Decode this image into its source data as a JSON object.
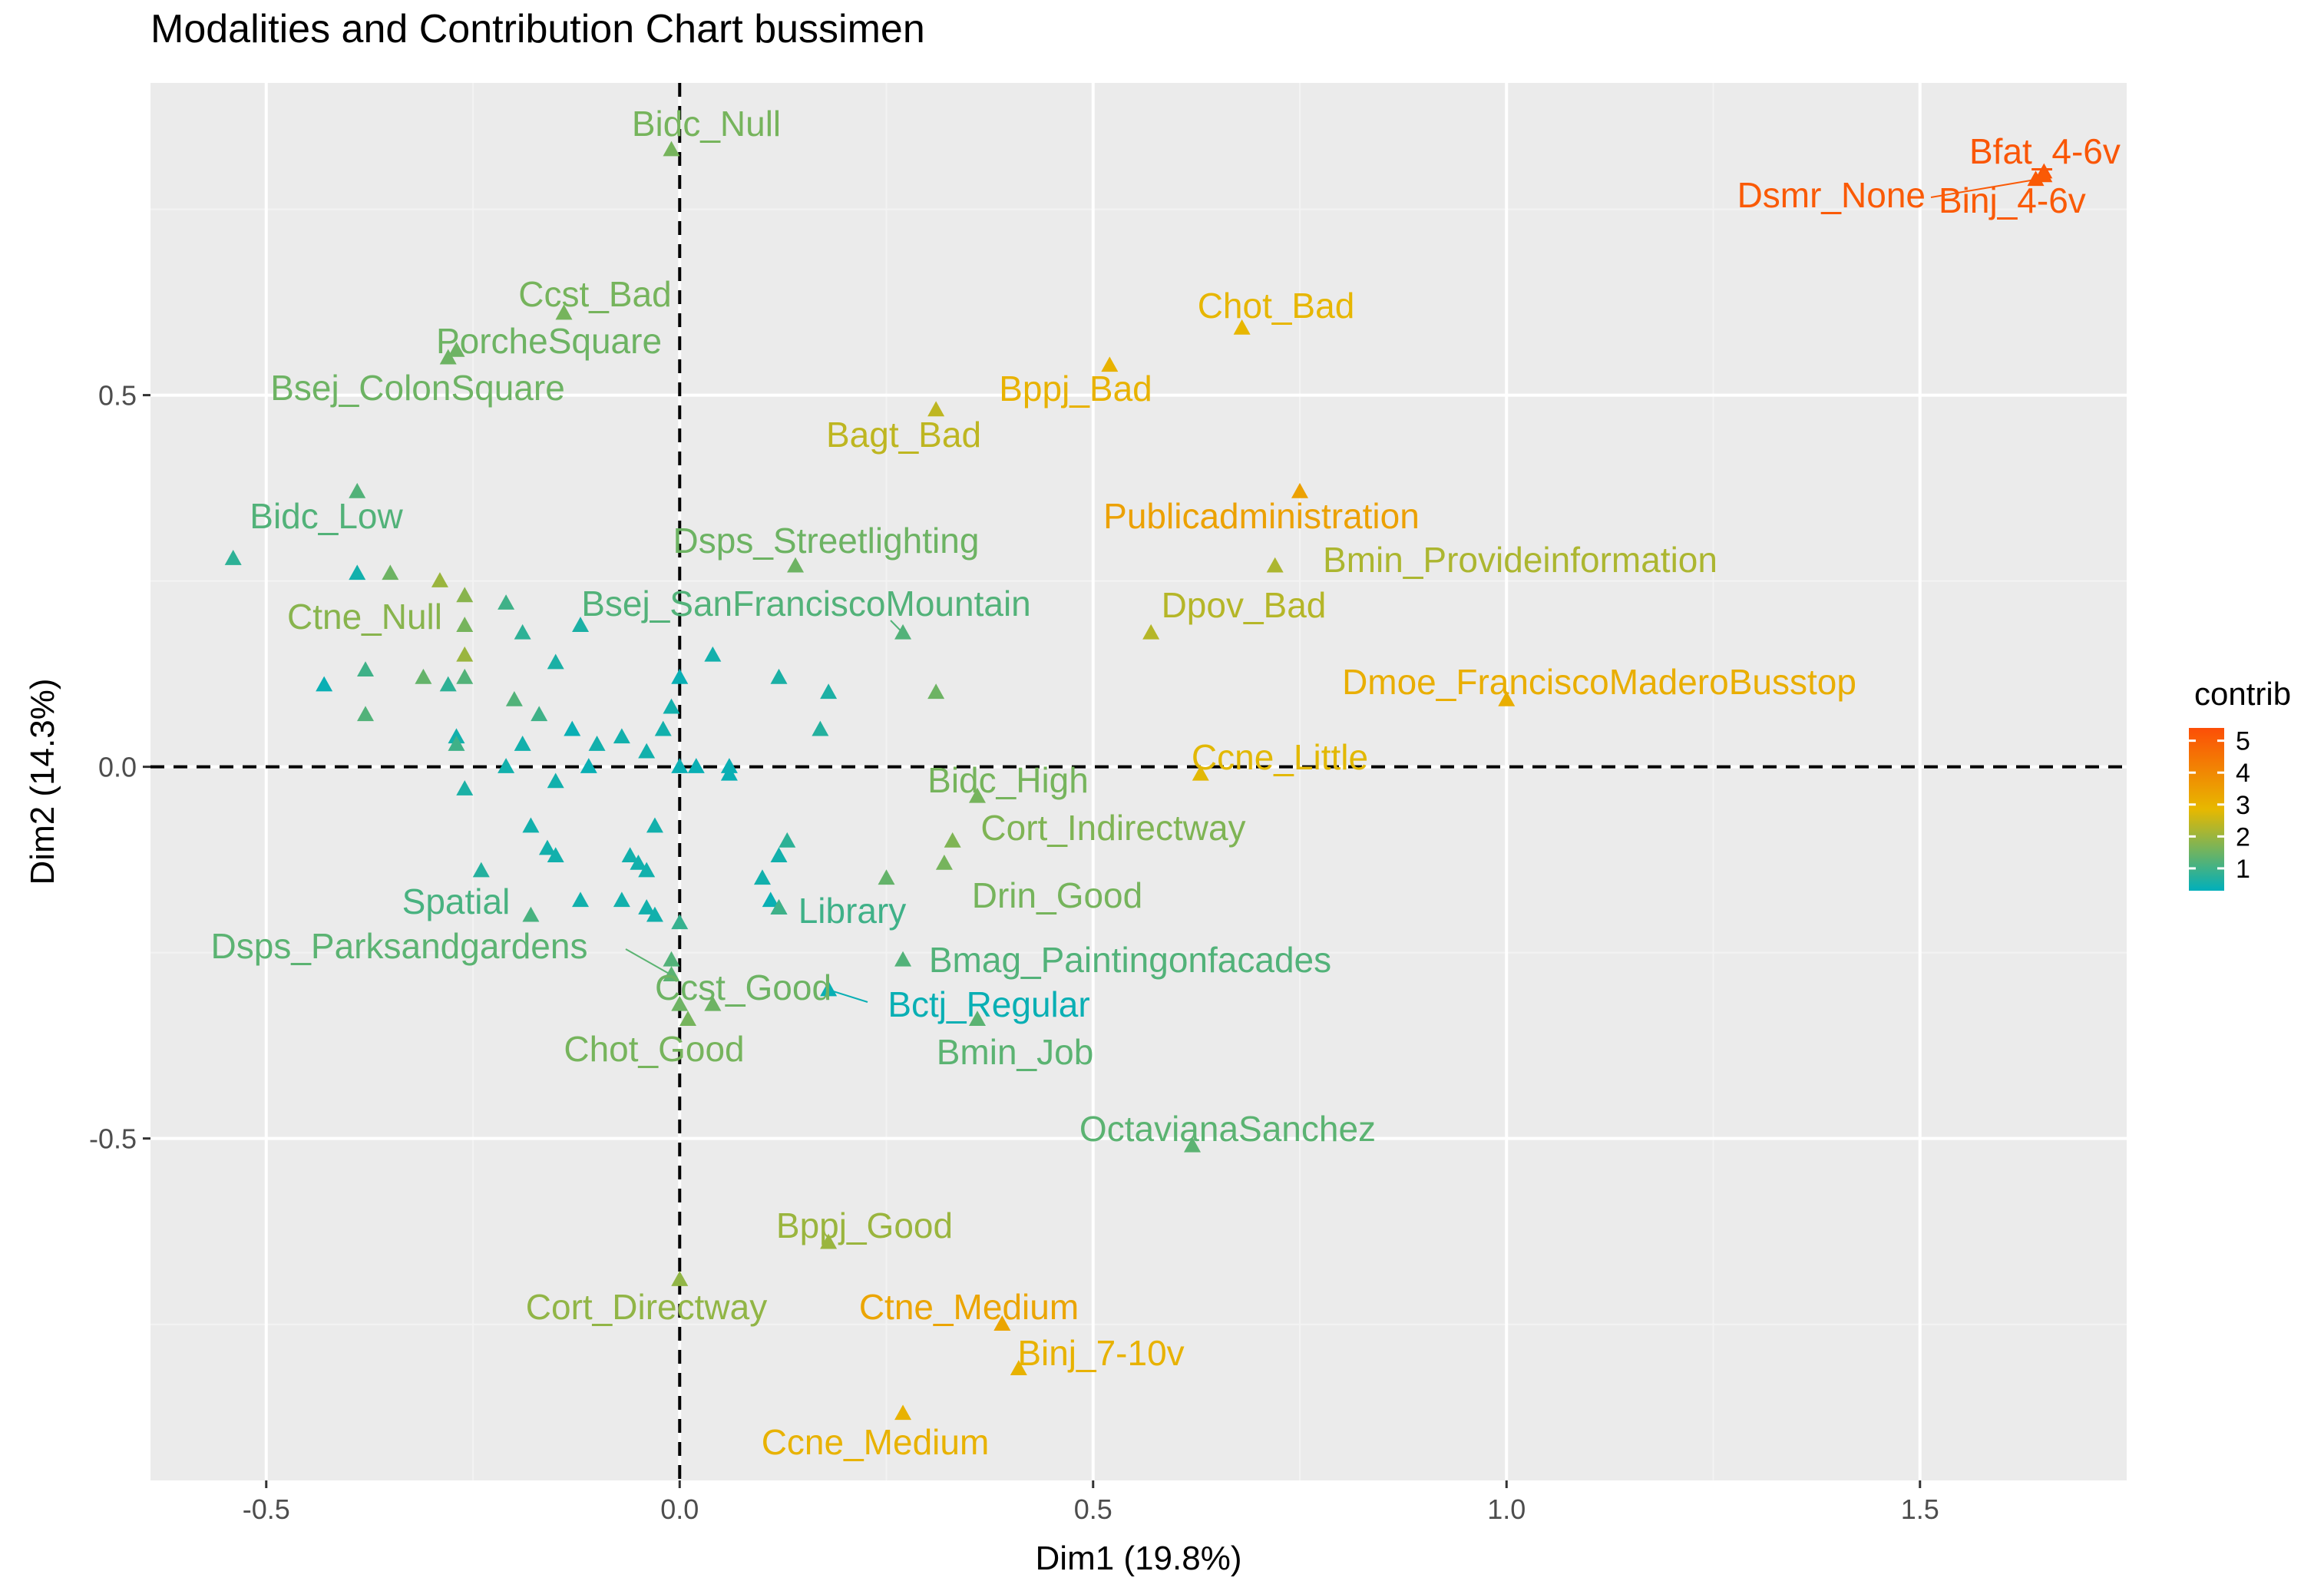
{
  "chart_data": {
    "type": "scatter",
    "title": "Modalities and Contribution Chart bussimen",
    "xlabel": "Dim1 (19.8%)",
    "ylabel": "Dim2 (14.3%)",
    "xlim": [
      -0.64,
      1.75
    ],
    "ylim": [
      -0.96,
      0.92
    ],
    "xticks": [
      -0.5,
      0.0,
      0.5,
      1.0,
      1.5
    ],
    "xtick_labels": [
      "-0.5",
      "0.0",
      "0.5",
      "1.0",
      "1.5"
    ],
    "yticks": [
      -0.5,
      0.0,
      0.5
    ],
    "ytick_labels": [
      "-0.5",
      "0.0",
      "0.5"
    ],
    "grid": true,
    "legend": {
      "title": "contrib",
      "position": "right",
      "range": [
        0.3,
        5.4
      ],
      "ticks": [
        1,
        2,
        3,
        4,
        5
      ],
      "tick_labels": [
        "1",
        "2",
        "3",
        "4",
        "5"
      ],
      "gradient": [
        "#00AFBB",
        "#E7B800",
        "#FC4E07"
      ]
    },
    "colors": {
      "panel": "#EBEBEB",
      "grid_major": "#FFFFFF",
      "grid_minor": "#F3F3F3",
      "ref_line": "#000000"
    },
    "labeled_points": [
      {
        "label": "Bfat_4-6v",
        "x": 1.65,
        "y": 0.8,
        "contrib": 5.2
      },
      {
        "label": "Dsmr_None",
        "x": 1.64,
        "y": 0.79,
        "contrib": 5.1
      },
      {
        "label": "Binj_4-6v",
        "x": 1.65,
        "y": 0.795,
        "contrib": 5.1
      },
      {
        "label": "Bidc_Null",
        "x": -0.01,
        "y": 0.83,
        "contrib": 1.6
      },
      {
        "label": "Ccst_Bad",
        "x": -0.14,
        "y": 0.61,
        "contrib": 1.6
      },
      {
        "label": "PorcheSquare",
        "x": -0.27,
        "y": 0.56,
        "contrib": 1.5
      },
      {
        "label": "Bsej_ColonSquare",
        "x": -0.28,
        "y": 0.55,
        "contrib": 1.5
      },
      {
        "label": "Chot_Bad",
        "x": 0.68,
        "y": 0.59,
        "contrib": 2.9
      },
      {
        "label": "Bppj_Bad",
        "x": 0.52,
        "y": 0.54,
        "contrib": 3.0
      },
      {
        "label": "Bagt_Bad",
        "x": 0.31,
        "y": 0.48,
        "contrib": 2.4
      },
      {
        "label": "Publicadministration",
        "x": 0.75,
        "y": 0.37,
        "contrib": 3.4
      },
      {
        "label": "Bidc_Low",
        "x": -0.39,
        "y": 0.37,
        "contrib": 1.2
      },
      {
        "label": "Dsps_Streetlighting",
        "x": 0.14,
        "y": 0.27,
        "contrib": 1.5
      },
      {
        "label": "Bmin_Provideinformation",
        "x": 0.72,
        "y": 0.27,
        "contrib": 2.2
      },
      {
        "label": "Ctne_Null",
        "x": -0.26,
        "y": 0.23,
        "contrib": 1.8
      },
      {
        "label": "Bsej_SanFranciscoMountain",
        "x": 0.27,
        "y": 0.18,
        "contrib": 1.2
      },
      {
        "label": "Dpov_Bad",
        "x": 0.57,
        "y": 0.18,
        "contrib": 2.3
      },
      {
        "label": "Dmoe_FranciscoMaderoBusstop",
        "x": 1.0,
        "y": 0.09,
        "contrib": 3.1
      },
      {
        "label": "Ccne_Little",
        "x": 0.63,
        "y": -0.01,
        "contrib": 2.8
      },
      {
        "label": "Bidc_High",
        "x": 0.36,
        "y": -0.04,
        "contrib": 1.6
      },
      {
        "label": "Cort_Indirectway",
        "x": 0.33,
        "y": -0.1,
        "contrib": 1.7
      },
      {
        "label": "Drin_Good",
        "x": 0.32,
        "y": -0.13,
        "contrib": 1.6
      },
      {
        "label": "Spatial",
        "x": -0.18,
        "y": -0.2,
        "contrib": 1.1
      },
      {
        "label": "Library",
        "x": 0.12,
        "y": -0.19,
        "contrib": 1.0
      },
      {
        "label": "Dsps_Parksandgardens",
        "x": -0.01,
        "y": -0.28,
        "contrib": 1.3
      },
      {
        "label": "Bmag_Paintingonfacades",
        "x": 0.27,
        "y": -0.26,
        "contrib": 1.2
      },
      {
        "label": "Ccst_Good",
        "x": 0.04,
        "y": -0.32,
        "contrib": 1.5
      },
      {
        "label": "Bctj_Regular",
        "x": 0.18,
        "y": -0.3,
        "contrib": 0.4
      },
      {
        "label": "Chot_Good",
        "x": 0.01,
        "y": -0.34,
        "contrib": 1.6
      },
      {
        "label": "Bmin_Job",
        "x": 0.36,
        "y": -0.34,
        "contrib": 1.3
      },
      {
        "label": "OctavianaSanchez",
        "x": 0.62,
        "y": -0.51,
        "contrib": 1.3
      },
      {
        "label": "Bppj_Good",
        "x": 0.18,
        "y": -0.64,
        "contrib": 2.0
      },
      {
        "label": "Cort_Directway",
        "x": 0.0,
        "y": -0.69,
        "contrib": 1.9
      },
      {
        "label": "Ctne_Medium",
        "x": 0.39,
        "y": -0.75,
        "contrib": 3.3
      },
      {
        "label": "Binj_7-10v",
        "x": 0.41,
        "y": -0.81,
        "contrib": 3.0
      },
      {
        "label": "Ccne_Medium",
        "x": 0.27,
        "y": -0.87,
        "contrib": 3.0
      }
    ],
    "unlabeled_points": [
      {
        "x": -0.54,
        "y": 0.28,
        "contrib": 0.8
      },
      {
        "x": -0.39,
        "y": 0.26,
        "contrib": 0.5
      },
      {
        "x": -0.35,
        "y": 0.26,
        "contrib": 1.5
      },
      {
        "x": -0.29,
        "y": 0.25,
        "contrib": 2.0
      },
      {
        "x": -0.26,
        "y": 0.19,
        "contrib": 1.6
      },
      {
        "x": -0.26,
        "y": 0.15,
        "contrib": 2.0
      },
      {
        "x": -0.21,
        "y": 0.22,
        "contrib": 1.0
      },
      {
        "x": -0.19,
        "y": 0.18,
        "contrib": 0.8
      },
      {
        "x": -0.12,
        "y": 0.19,
        "contrib": 0.6
      },
      {
        "x": -0.43,
        "y": 0.11,
        "contrib": 0.4
      },
      {
        "x": -0.38,
        "y": 0.13,
        "contrib": 1.0
      },
      {
        "x": -0.38,
        "y": 0.07,
        "contrib": 1.2
      },
      {
        "x": -0.31,
        "y": 0.12,
        "contrib": 1.4
      },
      {
        "x": -0.28,
        "y": 0.11,
        "contrib": 0.8
      },
      {
        "x": -0.26,
        "y": 0.12,
        "contrib": 1.2
      },
      {
        "x": -0.2,
        "y": 0.09,
        "contrib": 1.2
      },
      {
        "x": -0.17,
        "y": 0.07,
        "contrib": 1.0
      },
      {
        "x": -0.15,
        "y": 0.14,
        "contrib": 0.6
      },
      {
        "x": -0.27,
        "y": 0.04,
        "contrib": 0.5
      },
      {
        "x": -0.27,
        "y": 0.03,
        "contrib": 1.0
      },
      {
        "x": -0.19,
        "y": 0.03,
        "contrib": 0.5
      },
      {
        "x": -0.13,
        "y": 0.05,
        "contrib": 0.4
      },
      {
        "x": -0.1,
        "y": 0.03,
        "contrib": 0.5
      },
      {
        "x": -0.07,
        "y": 0.04,
        "contrib": 0.5
      },
      {
        "x": -0.04,
        "y": 0.02,
        "contrib": 0.5
      },
      {
        "x": -0.02,
        "y": 0.05,
        "contrib": 0.5
      },
      {
        "x": -0.01,
        "y": 0.08,
        "contrib": 0.5
      },
      {
        "x": 0.0,
        "y": 0.12,
        "contrib": 0.4
      },
      {
        "x": 0.04,
        "y": 0.15,
        "contrib": 0.5
      },
      {
        "x": 0.12,
        "y": 0.12,
        "contrib": 0.6
      },
      {
        "x": 0.18,
        "y": 0.1,
        "contrib": 0.6
      },
      {
        "x": 0.17,
        "y": 0.05,
        "contrib": 0.7
      },
      {
        "x": 0.31,
        "y": 0.1,
        "contrib": 1.5
      },
      {
        "x": -0.21,
        "y": 0.0,
        "contrib": 0.5
      },
      {
        "x": -0.11,
        "y": 0.0,
        "contrib": 0.4
      },
      {
        "x": 0.0,
        "y": 0.0,
        "contrib": 0.4
      },
      {
        "x": 0.02,
        "y": 0.0,
        "contrib": 0.4
      },
      {
        "x": 0.06,
        "y": 0.0,
        "contrib": 0.4
      },
      {
        "x": 0.06,
        "y": -0.01,
        "contrib": 0.4
      },
      {
        "x": -0.26,
        "y": -0.03,
        "contrib": 0.6
      },
      {
        "x": -0.15,
        "y": -0.02,
        "contrib": 0.5
      },
      {
        "x": -0.18,
        "y": -0.08,
        "contrib": 0.5
      },
      {
        "x": -0.16,
        "y": -0.11,
        "contrib": 0.5
      },
      {
        "x": -0.15,
        "y": -0.12,
        "contrib": 0.5
      },
      {
        "x": -0.03,
        "y": -0.08,
        "contrib": 0.5
      },
      {
        "x": -0.06,
        "y": -0.12,
        "contrib": 0.5
      },
      {
        "x": -0.05,
        "y": -0.13,
        "contrib": 0.5
      },
      {
        "x": -0.04,
        "y": -0.14,
        "contrib": 0.5
      },
      {
        "x": -0.24,
        "y": -0.14,
        "contrib": 0.7
      },
      {
        "x": -0.12,
        "y": -0.18,
        "contrib": 0.5
      },
      {
        "x": -0.07,
        "y": -0.18,
        "contrib": 0.5
      },
      {
        "x": -0.04,
        "y": -0.19,
        "contrib": 0.5
      },
      {
        "x": -0.03,
        "y": -0.2,
        "contrib": 0.5
      },
      {
        "x": 0.0,
        "y": -0.21,
        "contrib": 0.9
      },
      {
        "x": 0.1,
        "y": -0.15,
        "contrib": 0.5
      },
      {
        "x": 0.11,
        "y": -0.18,
        "contrib": 0.4
      },
      {
        "x": 0.12,
        "y": -0.19,
        "contrib": 0.4
      },
      {
        "x": 0.13,
        "y": -0.1,
        "contrib": 0.8
      },
      {
        "x": 0.12,
        "y": -0.12,
        "contrib": 0.5
      },
      {
        "x": 0.25,
        "y": -0.15,
        "contrib": 1.4
      },
      {
        "x": -0.01,
        "y": -0.26,
        "contrib": 1.2
      },
      {
        "x": 0.0,
        "y": -0.32,
        "contrib": 1.5
      }
    ]
  }
}
